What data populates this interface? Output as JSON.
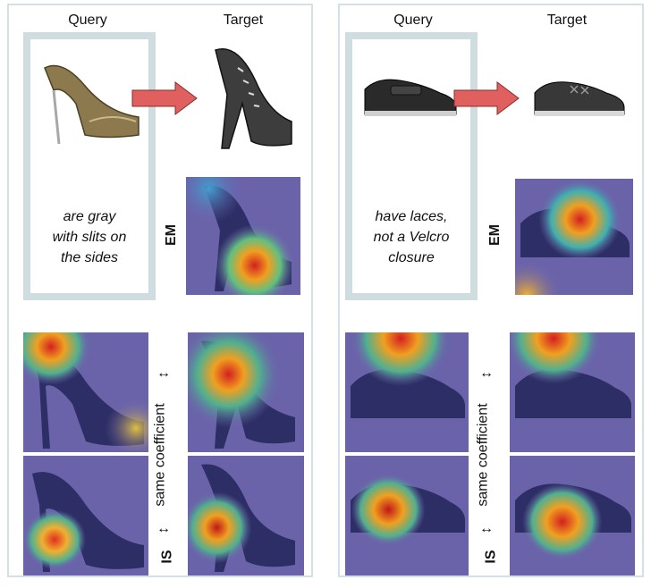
{
  "panels": [
    {
      "query_header": "Query",
      "target_header": "Target",
      "query_text": "are gray\nwith slits on\nthe sides",
      "em_label": "EM",
      "is_label": "IS",
      "coefficient_label": "same coefficient",
      "double_arrow": "↔",
      "colors": {
        "arrow": "#e06060",
        "frame": "#cfdde1"
      }
    },
    {
      "query_header": "Query",
      "target_header": "Target",
      "query_text": "have laces,\nnot a Velcro\nclosure",
      "em_label": "EM",
      "is_label": "IS",
      "coefficient_label": "same coefficient",
      "double_arrow": "↔",
      "colors": {
        "arrow": "#e06060",
        "frame": "#cfdde1"
      }
    }
  ]
}
